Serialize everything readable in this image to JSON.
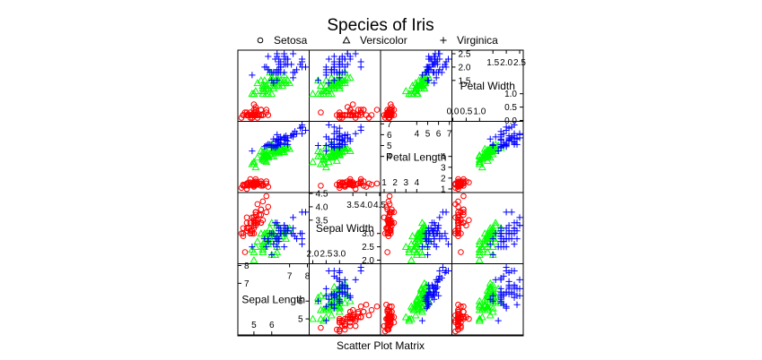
{
  "chart_data": {
    "type": "scatter",
    "title": "Species of Iris",
    "xlabel": "Scatter Plot Matrix",
    "grid": false,
    "legend_position": "top",
    "variables": [
      {
        "key": "sl",
        "label": "Sepal Length",
        "lim": [
          4.3,
          7.9
        ],
        "ticks_low": [
          "5",
          "6"
        ],
        "ticks_high": [
          "7",
          "8"
        ],
        "tick_values_low": [
          5,
          6
        ],
        "tick_values_high": [
          7,
          8
        ]
      },
      {
        "key": "sw",
        "label": "Sepal Width",
        "lim": [
          2.0,
          4.4
        ],
        "ticks_low": [
          "2.0",
          "2.5",
          "3.0"
        ],
        "ticks_high": [
          "3.5",
          "4.0",
          "4.5"
        ],
        "tick_values_low": [
          2.0,
          2.5,
          3.0
        ],
        "tick_values_high": [
          3.5,
          4.0,
          4.5
        ]
      },
      {
        "key": "pl",
        "label": "Petal Length",
        "lim": [
          1.0,
          6.9
        ],
        "ticks_low": [
          "1",
          "2",
          "3",
          "4"
        ],
        "ticks_high": [
          "4",
          "5",
          "6",
          "7"
        ],
        "tick_values_low": [
          1,
          2,
          3,
          4
        ],
        "tick_values_high": [
          4,
          5,
          6,
          7
        ]
      },
      {
        "key": "pw",
        "label": "Petal Width",
        "lim": [
          0.1,
          2.5
        ],
        "ticks_low": [
          "0.0",
          "0.5",
          "1.0"
        ],
        "ticks_high": [
          "1.5",
          "2.0",
          "2.5"
        ],
        "tick_values_low": [
          0.0,
          0.5,
          1.0
        ],
        "tick_values_high": [
          1.5,
          2.0,
          2.5
        ]
      }
    ],
    "series": [
      {
        "name": "Setosa",
        "color": "#ff0000",
        "symbol": "circle",
        "values": [
          [
            5.1,
            3.5,
            1.4,
            0.2
          ],
          [
            4.9,
            3.0,
            1.4,
            0.2
          ],
          [
            4.7,
            3.2,
            1.3,
            0.2
          ],
          [
            4.6,
            3.1,
            1.5,
            0.2
          ],
          [
            5.0,
            3.6,
            1.4,
            0.2
          ],
          [
            5.4,
            3.9,
            1.7,
            0.4
          ],
          [
            4.6,
            3.4,
            1.4,
            0.3
          ],
          [
            5.0,
            3.4,
            1.5,
            0.2
          ],
          [
            4.4,
            2.9,
            1.4,
            0.2
          ],
          [
            4.9,
            3.1,
            1.5,
            0.1
          ],
          [
            5.4,
            3.7,
            1.5,
            0.2
          ],
          [
            4.8,
            3.4,
            1.6,
            0.2
          ],
          [
            4.8,
            3.0,
            1.4,
            0.1
          ],
          [
            4.3,
            3.0,
            1.1,
            0.1
          ],
          [
            5.8,
            4.0,
            1.2,
            0.2
          ],
          [
            5.7,
            4.4,
            1.5,
            0.4
          ],
          [
            5.4,
            3.9,
            1.3,
            0.4
          ],
          [
            5.1,
            3.5,
            1.4,
            0.3
          ],
          [
            5.7,
            3.8,
            1.7,
            0.3
          ],
          [
            5.1,
            3.8,
            1.5,
            0.3
          ],
          [
            5.4,
            3.4,
            1.7,
            0.2
          ],
          [
            5.1,
            3.7,
            1.5,
            0.4
          ],
          [
            4.6,
            3.6,
            1.0,
            0.2
          ],
          [
            5.1,
            3.3,
            1.7,
            0.5
          ],
          [
            4.8,
            3.4,
            1.9,
            0.2
          ],
          [
            5.0,
            3.0,
            1.6,
            0.2
          ],
          [
            5.0,
            3.4,
            1.6,
            0.4
          ],
          [
            5.2,
            3.5,
            1.5,
            0.2
          ],
          [
            5.2,
            3.4,
            1.4,
            0.2
          ],
          [
            4.7,
            3.2,
            1.6,
            0.2
          ],
          [
            4.8,
            3.1,
            1.6,
            0.2
          ],
          [
            5.4,
            3.4,
            1.5,
            0.4
          ],
          [
            5.2,
            4.1,
            1.5,
            0.1
          ],
          [
            5.5,
            4.2,
            1.4,
            0.2
          ],
          [
            4.9,
            3.1,
            1.5,
            0.2
          ],
          [
            5.0,
            3.2,
            1.2,
            0.2
          ],
          [
            5.5,
            3.5,
            1.3,
            0.2
          ],
          [
            4.9,
            3.6,
            1.4,
            0.1
          ],
          [
            4.4,
            3.0,
            1.3,
            0.2
          ],
          [
            5.1,
            3.4,
            1.5,
            0.2
          ],
          [
            5.0,
            3.5,
            1.3,
            0.3
          ],
          [
            4.5,
            2.3,
            1.3,
            0.3
          ],
          [
            4.4,
            3.2,
            1.3,
            0.2
          ],
          [
            5.0,
            3.5,
            1.6,
            0.6
          ],
          [
            5.1,
            3.8,
            1.9,
            0.4
          ],
          [
            4.8,
            3.0,
            1.4,
            0.3
          ],
          [
            5.1,
            3.8,
            1.6,
            0.2
          ],
          [
            4.6,
            3.2,
            1.4,
            0.2
          ],
          [
            5.3,
            3.7,
            1.5,
            0.2
          ],
          [
            5.0,
            3.3,
            1.4,
            0.2
          ]
        ]
      },
      {
        "name": "Versicolor",
        "color": "#00ff00",
        "symbol": "triangle",
        "values": [
          [
            7.0,
            3.2,
            4.7,
            1.4
          ],
          [
            6.4,
            3.2,
            4.5,
            1.5
          ],
          [
            6.9,
            3.1,
            4.9,
            1.5
          ],
          [
            5.5,
            2.3,
            4.0,
            1.3
          ],
          [
            6.5,
            2.8,
            4.6,
            1.5
          ],
          [
            5.7,
            2.8,
            4.5,
            1.3
          ],
          [
            6.3,
            3.3,
            4.7,
            1.6
          ],
          [
            4.9,
            2.4,
            3.3,
            1.0
          ],
          [
            6.6,
            2.9,
            4.6,
            1.3
          ],
          [
            5.2,
            2.7,
            3.9,
            1.4
          ],
          [
            5.0,
            2.0,
            3.5,
            1.0
          ],
          [
            5.9,
            3.0,
            4.2,
            1.5
          ],
          [
            6.0,
            2.2,
            4.0,
            1.0
          ],
          [
            6.1,
            2.9,
            4.7,
            1.4
          ],
          [
            5.6,
            2.9,
            3.6,
            1.3
          ],
          [
            6.7,
            3.1,
            4.4,
            1.4
          ],
          [
            5.6,
            3.0,
            4.5,
            1.5
          ],
          [
            5.8,
            2.7,
            4.1,
            1.0
          ],
          [
            6.2,
            2.2,
            4.5,
            1.5
          ],
          [
            5.6,
            2.5,
            3.9,
            1.1
          ],
          [
            5.9,
            3.2,
            4.8,
            1.8
          ],
          [
            6.1,
            2.8,
            4.0,
            1.3
          ],
          [
            6.3,
            2.5,
            4.9,
            1.5
          ],
          [
            6.1,
            2.8,
            4.7,
            1.2
          ],
          [
            6.4,
            2.9,
            4.3,
            1.3
          ],
          [
            6.6,
            3.0,
            4.4,
            1.4
          ],
          [
            6.8,
            2.8,
            4.8,
            1.4
          ],
          [
            6.7,
            3.0,
            5.0,
            1.7
          ],
          [
            6.0,
            2.9,
            4.5,
            1.5
          ],
          [
            5.7,
            2.6,
            3.5,
            1.0
          ],
          [
            5.5,
            2.4,
            3.8,
            1.1
          ],
          [
            5.5,
            2.4,
            3.7,
            1.0
          ],
          [
            5.8,
            2.7,
            3.9,
            1.2
          ],
          [
            6.0,
            2.7,
            5.1,
            1.6
          ],
          [
            5.4,
            3.0,
            4.5,
            1.5
          ],
          [
            6.0,
            3.4,
            4.5,
            1.6
          ],
          [
            6.7,
            3.1,
            4.7,
            1.5
          ],
          [
            6.3,
            2.3,
            4.4,
            1.3
          ],
          [
            5.6,
            3.0,
            4.1,
            1.3
          ],
          [
            5.5,
            2.5,
            4.0,
            1.3
          ],
          [
            5.5,
            2.6,
            4.4,
            1.2
          ],
          [
            6.1,
            3.0,
            4.6,
            1.4
          ],
          [
            5.8,
            2.6,
            4.0,
            1.2
          ],
          [
            5.0,
            2.3,
            3.3,
            1.0
          ],
          [
            5.6,
            2.7,
            4.2,
            1.3
          ],
          [
            5.7,
            3.0,
            4.2,
            1.2
          ],
          [
            5.7,
            2.9,
            4.2,
            1.3
          ],
          [
            6.2,
            2.9,
            4.3,
            1.3
          ],
          [
            5.1,
            2.5,
            3.0,
            1.1
          ],
          [
            5.7,
            2.8,
            4.1,
            1.3
          ]
        ]
      },
      {
        "name": "Virginica",
        "color": "#0000ff",
        "symbol": "plus",
        "values": [
          [
            6.3,
            3.3,
            6.0,
            2.5
          ],
          [
            5.8,
            2.7,
            5.1,
            1.9
          ],
          [
            7.1,
            3.0,
            5.9,
            2.1
          ],
          [
            6.3,
            2.9,
            5.6,
            1.8
          ],
          [
            6.5,
            3.0,
            5.8,
            2.2
          ],
          [
            7.6,
            3.0,
            6.6,
            2.1
          ],
          [
            4.9,
            2.5,
            4.5,
            1.7
          ],
          [
            7.3,
            2.9,
            6.3,
            1.8
          ],
          [
            6.7,
            2.5,
            5.8,
            1.8
          ],
          [
            7.2,
            3.6,
            6.1,
            2.5
          ],
          [
            6.5,
            3.2,
            5.1,
            2.0
          ],
          [
            6.4,
            2.7,
            5.3,
            1.9
          ],
          [
            6.8,
            3.0,
            5.5,
            2.1
          ],
          [
            5.7,
            2.5,
            5.0,
            2.0
          ],
          [
            5.8,
            2.8,
            5.1,
            2.4
          ],
          [
            6.4,
            3.2,
            5.3,
            2.3
          ],
          [
            6.5,
            3.0,
            5.5,
            1.8
          ],
          [
            7.7,
            3.8,
            6.7,
            2.2
          ],
          [
            7.7,
            2.6,
            6.9,
            2.3
          ],
          [
            6.0,
            2.2,
            5.0,
            1.5
          ],
          [
            6.9,
            3.2,
            5.7,
            2.3
          ],
          [
            5.6,
            2.8,
            4.9,
            2.0
          ],
          [
            7.7,
            2.8,
            6.7,
            2.0
          ],
          [
            6.3,
            2.7,
            4.9,
            1.8
          ],
          [
            6.7,
            3.3,
            5.7,
            2.1
          ],
          [
            7.2,
            3.2,
            6.0,
            1.8
          ],
          [
            6.2,
            2.8,
            4.8,
            1.8
          ],
          [
            6.1,
            3.0,
            4.9,
            1.8
          ],
          [
            6.4,
            2.8,
            5.6,
            2.1
          ],
          [
            7.2,
            3.0,
            5.8,
            1.6
          ],
          [
            7.4,
            2.8,
            6.1,
            1.9
          ],
          [
            7.9,
            3.8,
            6.4,
            2.0
          ],
          [
            6.4,
            2.8,
            5.6,
            2.2
          ],
          [
            6.3,
            2.8,
            5.1,
            1.5
          ],
          [
            6.1,
            2.6,
            5.6,
            1.4
          ],
          [
            7.7,
            3.0,
            6.1,
            2.3
          ],
          [
            6.3,
            3.4,
            5.6,
            2.4
          ],
          [
            6.4,
            3.1,
            5.5,
            1.8
          ],
          [
            6.0,
            3.0,
            4.8,
            1.8
          ],
          [
            6.9,
            3.1,
            5.4,
            2.1
          ],
          [
            6.7,
            3.1,
            5.6,
            2.4
          ],
          [
            6.9,
            3.1,
            5.1,
            2.3
          ],
          [
            5.8,
            2.7,
            5.1,
            1.9
          ],
          [
            6.8,
            3.2,
            5.9,
            2.3
          ],
          [
            6.7,
            3.3,
            5.7,
            2.5
          ],
          [
            6.7,
            3.0,
            5.2,
            2.3
          ],
          [
            6.3,
            2.5,
            5.0,
            1.9
          ],
          [
            6.5,
            3.0,
            5.2,
            2.0
          ],
          [
            6.2,
            3.4,
            5.4,
            2.3
          ],
          [
            5.9,
            3.0,
            5.1,
            1.8
          ]
        ]
      }
    ]
  }
}
